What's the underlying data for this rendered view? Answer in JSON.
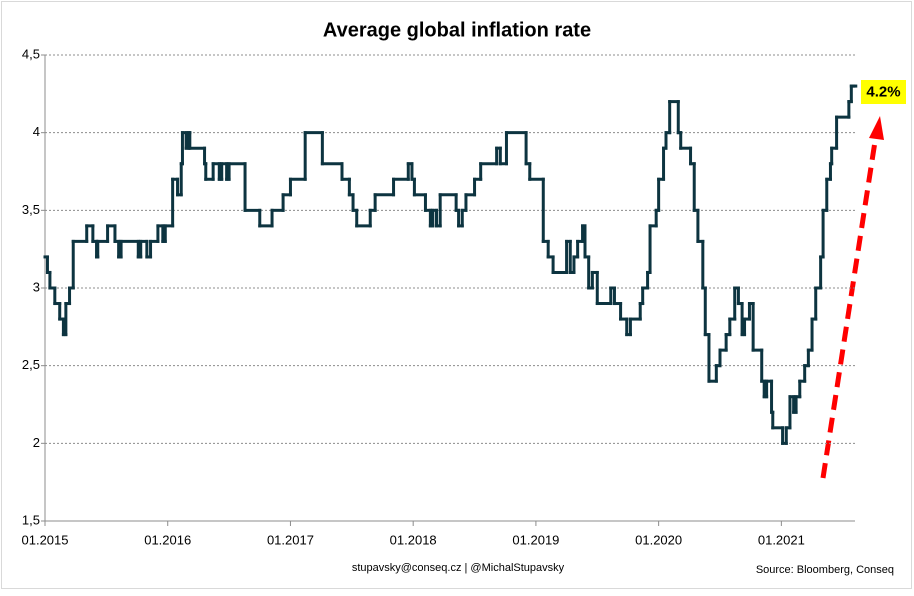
{
  "chart_data": {
    "type": "step-line",
    "title": "Average global inflation rate",
    "footer": "stupavsky@conseq.cz  |  @MichalStupavsky",
    "source": "Source: Bloomberg, Conseq",
    "annotation": "4.2%",
    "xlim": [
      2015,
      2021.6
    ],
    "xticks": [
      {
        "value": 2015,
        "label": "01.2015"
      },
      {
        "value": 2016,
        "label": "01.2016"
      },
      {
        "value": 2017,
        "label": "01.2017"
      },
      {
        "value": 2018,
        "label": "01.2018"
      },
      {
        "value": 2019,
        "label": "01.2019"
      },
      {
        "value": 2020,
        "label": "01.2020"
      },
      {
        "value": 2021,
        "label": "01.2021"
      }
    ],
    "ylim": [
      1.5,
      4.5
    ],
    "yticks": [
      {
        "value": 1.5,
        "label": "1,5"
      },
      2,
      {
        "value": 2.5,
        "label": "2,5"
      },
      3,
      {
        "value": 3.5,
        "label": "3,5"
      },
      4,
      {
        "value": 4.5,
        "label": "4,5"
      }
    ],
    "grid": true,
    "series": [
      {
        "color": "#0d3440",
        "x": [
          2015.0,
          2015.02,
          2015.04,
          2015.08,
          2015.12,
          2015.15,
          2015.17,
          2015.2,
          2015.23,
          2015.34,
          2015.39,
          2015.42,
          2015.43,
          2015.51,
          2015.57,
          2015.6,
          2015.62,
          2015.76,
          2015.78,
          2015.83,
          2015.86,
          2015.92,
          2015.96,
          2015.98,
          2016.04,
          2016.08,
          2016.11,
          2016.12,
          2016.15,
          2016.17,
          2016.18,
          2016.3,
          2016.31,
          2016.37,
          2016.42,
          2016.44,
          2016.48,
          2016.5,
          2016.63,
          2016.75,
          2016.85,
          2016.94,
          2017.0,
          2017.12,
          2017.26,
          2017.42,
          2017.48,
          2017.51,
          2017.54,
          2017.65,
          2017.69,
          2017.84,
          2017.96,
          2017.99,
          2018.01,
          2018.1,
          2018.14,
          2018.16,
          2018.19,
          2018.22,
          2018.35,
          2018.37,
          2018.4,
          2018.43,
          2018.5,
          2018.55,
          2018.68,
          2018.71,
          2018.76,
          2018.92,
          2018.95,
          2019.06,
          2019.1,
          2019.14,
          2019.25,
          2019.28,
          2019.31,
          2019.34,
          2019.38,
          2019.4,
          2019.43,
          2019.46,
          2019.5,
          2019.61,
          2019.64,
          2019.69,
          2019.74,
          2019.77,
          2019.85,
          2019.87,
          2019.91,
          2019.93,
          2019.98,
          2020.0,
          2020.04,
          2020.06,
          2020.09,
          2020.16,
          2020.18,
          2020.26,
          2020.29,
          2020.32,
          2020.36,
          2020.38,
          2020.41,
          2020.47,
          2020.5,
          2020.55,
          2020.58,
          2020.62,
          2020.65,
          2020.68,
          2020.7,
          2020.74,
          2020.77,
          2020.84,
          2020.86,
          2020.88,
          2020.92,
          2020.93,
          2021.01,
          2021.04,
          2021.07,
          2021.1,
          2021.12,
          2021.15,
          2021.19,
          2021.22,
          2021.25,
          2021.28,
          2021.32,
          2021.34,
          2021.37,
          2021.4,
          2021.41,
          2021.45,
          2021.55,
          2021.57,
          2021.59
        ],
        "values": [
          3.2,
          3.1,
          3.0,
          2.9,
          2.8,
          2.7,
          2.9,
          3.0,
          3.3,
          3.4,
          3.3,
          3.2,
          3.3,
          3.4,
          3.3,
          3.2,
          3.3,
          3.2,
          3.3,
          3.2,
          3.3,
          3.4,
          3.3,
          3.4,
          3.7,
          3.6,
          3.8,
          4.0,
          3.9,
          4.0,
          3.9,
          3.8,
          3.7,
          3.8,
          3.7,
          3.8,
          3.7,
          3.8,
          3.5,
          3.4,
          3.5,
          3.6,
          3.7,
          4.0,
          3.8,
          3.7,
          3.6,
          3.5,
          3.4,
          3.5,
          3.6,
          3.7,
          3.8,
          3.7,
          3.6,
          3.5,
          3.4,
          3.5,
          3.4,
          3.6,
          3.5,
          3.4,
          3.5,
          3.6,
          3.7,
          3.8,
          3.9,
          3.8,
          4.0,
          3.8,
          3.7,
          3.3,
          3.2,
          3.1,
          3.3,
          3.1,
          3.2,
          3.3,
          3.4,
          3.2,
          3.0,
          3.1,
          2.9,
          3.0,
          2.9,
          2.8,
          2.7,
          2.8,
          2.9,
          3.0,
          3.1,
          3.4,
          3.5,
          3.7,
          3.9,
          4.0,
          4.2,
          4.0,
          3.9,
          3.8,
          3.5,
          3.3,
          3.0,
          2.7,
          2.4,
          2.5,
          2.6,
          2.7,
          2.8,
          3.0,
          2.9,
          2.7,
          2.8,
          2.9,
          2.6,
          2.4,
          2.3,
          2.4,
          2.2,
          2.1,
          2.0,
          2.1,
          2.3,
          2.2,
          2.3,
          2.4,
          2.5,
          2.6,
          2.8,
          3.0,
          3.2,
          3.5,
          3.7,
          3.8,
          3.9,
          4.1,
          4.2,
          4.3,
          4.3
        ]
      }
    ]
  }
}
